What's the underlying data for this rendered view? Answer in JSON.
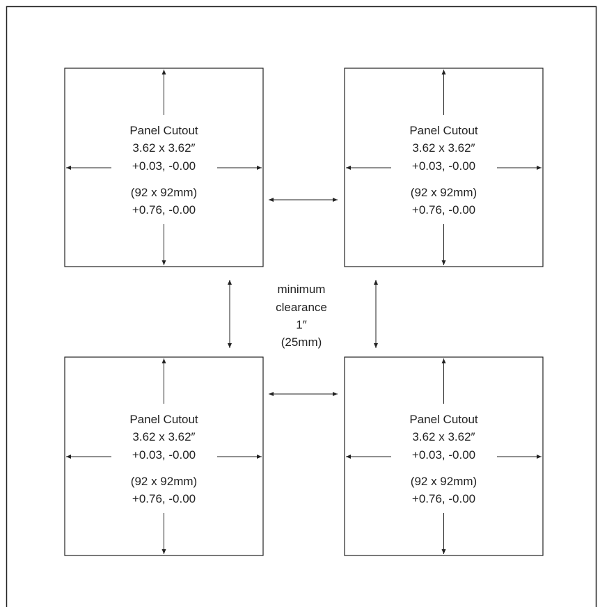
{
  "colors": {
    "line": "#222222",
    "background": "#ffffff"
  },
  "panels": [
    {
      "id": "top-left",
      "title": "Panel Cutout",
      "size_in": "3.62 x 3.62″",
      "tolerance_in": "+0.03, -0.00",
      "size_mm": "(92 x 92mm)",
      "tolerance_mm": "+0.76, -0.00"
    },
    {
      "id": "top-right",
      "title": "Panel Cutout",
      "size_in": "3.62 x 3.62″",
      "tolerance_in": "+0.03, -0.00",
      "size_mm": "(92 x 92mm)",
      "tolerance_mm": "+0.76, -0.00"
    },
    {
      "id": "bottom-left",
      "title": "Panel Cutout",
      "size_in": "3.62 x 3.62″",
      "tolerance_in": "+0.03, -0.00",
      "size_mm": "(92 x 92mm)",
      "tolerance_mm": "+0.76, -0.00"
    },
    {
      "id": "bottom-right",
      "title": "Panel Cutout",
      "size_in": "3.62 x 3.62″",
      "tolerance_in": "+0.03, -0.00",
      "size_mm": "(92 x 92mm)",
      "tolerance_mm": "+0.76, -0.00"
    }
  ],
  "clearance": {
    "lines": [
      "minimum",
      "clearance",
      "1″",
      "(25mm)"
    ]
  }
}
